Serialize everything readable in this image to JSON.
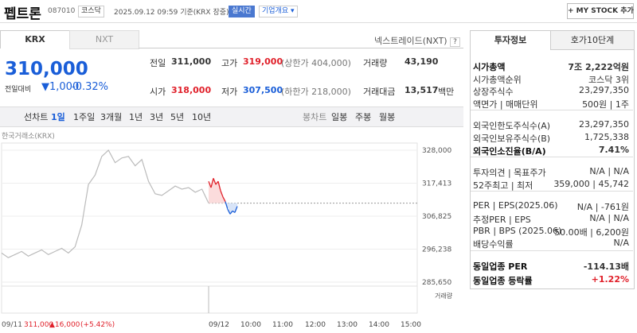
{
  "header": {
    "name": "펩트론",
    "code": "087010",
    "market": "코스닥",
    "time": "2025.09.12 09:59 기준(KRX 장중)",
    "realtime": "실시간",
    "company": "기업개요",
    "mystock": "+ MY STOCK 추가"
  },
  "tabs": [
    "KRX",
    "NXT"
  ],
  "nxt_link": "넥스트레이드(NXT)",
  "price": {
    "current": "310,000",
    "change_label": "전일대비",
    "change": "1,000",
    "rate": "-0.32%"
  },
  "quote": [
    [
      {
        "label": "전일",
        "value": "311,000"
      },
      {
        "label": "고가",
        "value": "319,000",
        "note": "(상한가 404,000)"
      },
      {
        "label": "거래량",
        "value": "43,190"
      }
    ],
    [
      {
        "label": "시가",
        "value": "318,000"
      },
      {
        "label": "저가",
        "value": "307,500",
        "note": "(하한가 218,000)"
      },
      {
        "label": "거래대금",
        "value": "13,517",
        "unit": "백만"
      }
    ]
  ],
  "periods": [
    "선차트",
    "1일",
    "1주일",
    "3개월",
    "1년",
    "3년",
    "5년",
    "10년"
  ],
  "candles": [
    "봉차트",
    "일봉",
    "주봉",
    "월봉"
  ],
  "chart_data": {
    "type": "line",
    "source": "한국거래소(KRX)",
    "ylim": [
      285650,
      328000
    ],
    "yticks": [
      {
        "value": 328000,
        "label": "328,000"
      },
      {
        "value": 317413,
        "label": "317,413"
      },
      {
        "value": 306825,
        "label": "306,825"
      },
      {
        "value": 296238,
        "label": "296,238"
      },
      {
        "value": 285650,
        "label": "285,650"
      }
    ],
    "prev_close": 311000,
    "previous": [
      295000,
      293500,
      294500,
      295500,
      294000,
      295000,
      296000,
      294500,
      295500,
      296500,
      295000,
      297000,
      304000,
      317000,
      320000,
      326000,
      328000,
      324000,
      325500,
      326000,
      323000,
      325000,
      318000,
      314000,
      313500,
      315000,
      316500,
      315500,
      316000,
      314500,
      315500,
      311000
    ],
    "today": [
      318000,
      316000,
      319000,
      317000,
      318000,
      315000,
      313000,
      311500,
      309000,
      307500,
      308500,
      308000,
      310000
    ],
    "volume_label": "거래량",
    "xticks": [
      "09/12",
      "10:00",
      "11:00",
      "12:00",
      "13:00",
      "14:00",
      "15:00"
    ],
    "footer": {
      "date": "09/11",
      "close": "311,000",
      "change": "▲16,000",
      "rate": "(+5.42%)"
    }
  },
  "info": {
    "tabs": [
      "투자정보",
      "호가10단계"
    ],
    "groups": [
      [
        [
          "시가총액",
          "7조 2,222억원"
        ],
        [
          "시가총액순위",
          "코스닥 3위"
        ],
        [
          "상장주식수",
          "23,297,350"
        ],
        [
          "액면가 | 매매단위",
          "500원 | 1주"
        ]
      ],
      [
        [
          "외국인한도주식수(A)",
          "23,297,350"
        ],
        [
          "외국인보유주식수(B)",
          "1,725,338"
        ],
        [
          "외국인소진율(B/A)",
          "7.41%"
        ]
      ],
      [
        [
          "투자의견 | 목표주가",
          "N/A | N/A"
        ],
        [
          "52주최고 | 최저",
          "359,000 | 45,742"
        ]
      ],
      [
        [
          "PER | EPS(2025.06)",
          "N/A | -761원"
        ],
        [
          "추정PER | EPS",
          "N/A | N/A"
        ],
        [
          "PBR | BPS (2025.06)",
          "50.00배 | 6,200원"
        ],
        [
          "배당수익률",
          "N/A"
        ]
      ],
      [
        [
          "동일업종 PER",
          "-114.13배"
        ],
        [
          "동일업종 등락률",
          "+1.22%"
        ]
      ]
    ]
  }
}
